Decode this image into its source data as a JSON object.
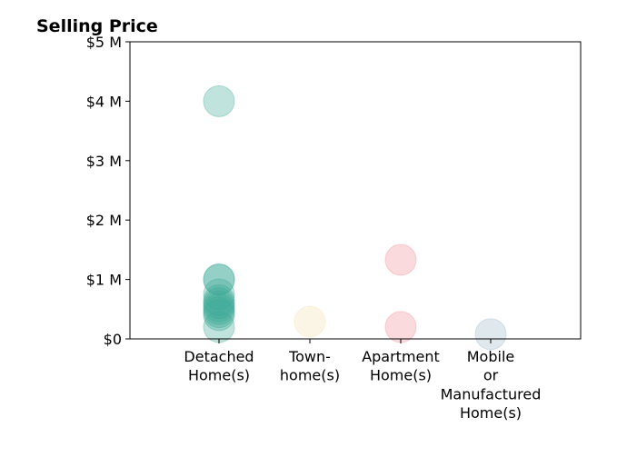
{
  "chart_data": {
    "type": "scatter",
    "title": "Selling Price",
    "xlabel": "",
    "ylabel": "",
    "categories": [
      [
        "Detached",
        "Home(s)"
      ],
      [
        "Town-",
        "home(s)"
      ],
      [
        "Apartment",
        "Home(s)"
      ],
      [
        "Mobile",
        "or",
        "Manufactured",
        "Home(s)"
      ]
    ],
    "y_ticks": [
      "$0",
      "$1 M",
      "$2 M",
      "$3 M",
      "$4 M",
      "$5 M"
    ],
    "y_tick_values": [
      0,
      1000000,
      2000000,
      3000000,
      4000000,
      5000000
    ],
    "ylim": [
      0,
      5000000
    ],
    "grid": false,
    "series": [
      {
        "category": 0,
        "color": "#3aa896",
        "values": [
          4000000,
          1000000,
          1000000,
          750000,
          650000,
          600000,
          550000,
          500000,
          450000,
          400000,
          200000
        ]
      },
      {
        "category": 1,
        "color": "#f3e0b0",
        "values": [
          290000
        ]
      },
      {
        "category": 2,
        "color": "#f08c94",
        "values": [
          1330000,
          200000
        ]
      },
      {
        "category": 3,
        "color": "#9ab6c8",
        "values": [
          80000
        ]
      }
    ]
  }
}
